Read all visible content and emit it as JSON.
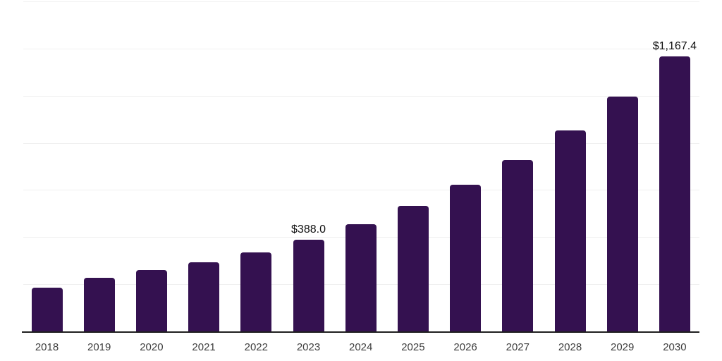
{
  "chart_data": {
    "type": "bar",
    "title": "",
    "xlabel": "",
    "ylabel": "",
    "categories": [
      "2018",
      "2019",
      "2020",
      "2021",
      "2022",
      "2023",
      "2024",
      "2025",
      "2026",
      "2027",
      "2028",
      "2029",
      "2030"
    ],
    "values": [
      185.1,
      226.9,
      259.7,
      292.5,
      334.3,
      388.0,
      454.1,
      531.5,
      622.1,
      728.1,
      852.2,
      997.4,
      1167.4
    ],
    "data_labels": {
      "2023": "$388.0",
      "2030": "$1,167.4"
    },
    "value_prefix": "$",
    "ylim": [
      0,
      1400
    ],
    "grid_step": 200,
    "grid": "horizontal-only",
    "legend": "none",
    "y_tick_labels_visible": false
  },
  "style": {
    "background": "#ffffff",
    "bar_color": "#341150",
    "gridline_color": "#f0f0f0",
    "axis_line_color": "#1f1f1f",
    "tick_label_color": "#3d3d3d",
    "data_label_color": "#101010"
  }
}
